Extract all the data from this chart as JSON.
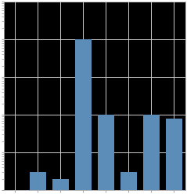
{
  "bar_positions": [
    2,
    3,
    4,
    5,
    6,
    7,
    8
  ],
  "bar_heights": [
    30,
    20,
    100000,
    1000,
    30,
    1000,
    800
  ],
  "bar_color": "#5b8db8",
  "bar_width": 0.7,
  "background_color": "#ffffff",
  "plot_bg_color": "#000000",
  "grid_color": "#cccccc",
  "grid_linewidth": 0.7,
  "ylim_log": [
    10,
    1000000
  ],
  "xlim": [
    0.5,
    8.5
  ],
  "figsize": [
    2.39,
    2.47
  ],
  "dpi": 100,
  "spine_color": "#aaaaaa",
  "tick_color": "#aaaaaa"
}
